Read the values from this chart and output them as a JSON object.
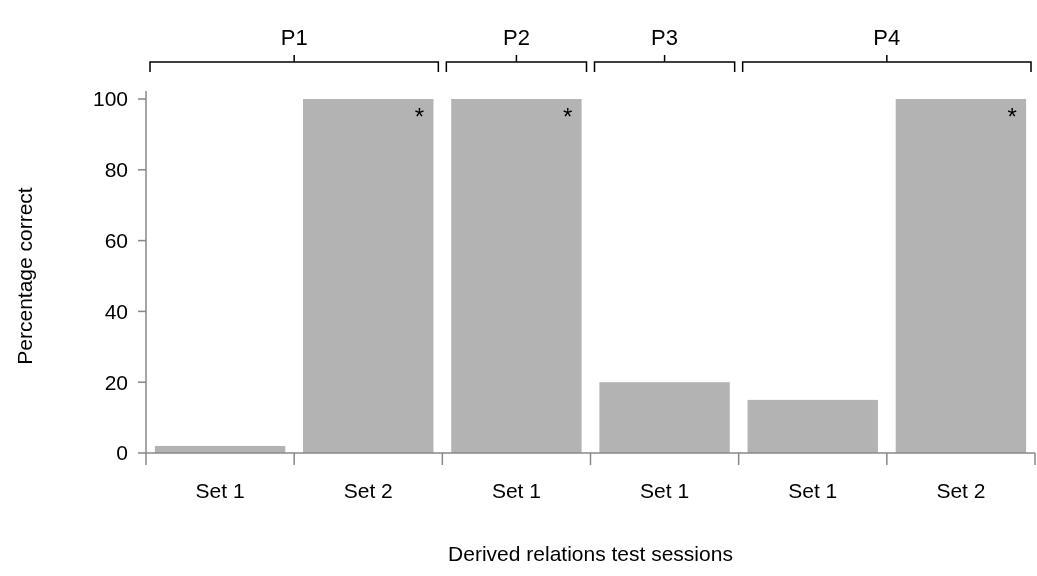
{
  "chart_data": {
    "type": "bar",
    "xlabel": "Derived relations test sessions",
    "ylabel": "Percentage correct",
    "categories": [
      "Set 1",
      "Set 2",
      "Set 1",
      "Set 1",
      "Set 1",
      "Set 2"
    ],
    "values": [
      2,
      100,
      100,
      20,
      15,
      100
    ],
    "color": "#b3b3b3",
    "value_labels": [
      null,
      "*",
      "*",
      null,
      null,
      "*"
    ],
    "ylim": [
      0,
      100
    ],
    "yticks": [
      0,
      20,
      40,
      60,
      80,
      100
    ],
    "annotations": [
      "P1",
      "P2",
      "P3",
      "P4"
    ],
    "grid": false
  }
}
